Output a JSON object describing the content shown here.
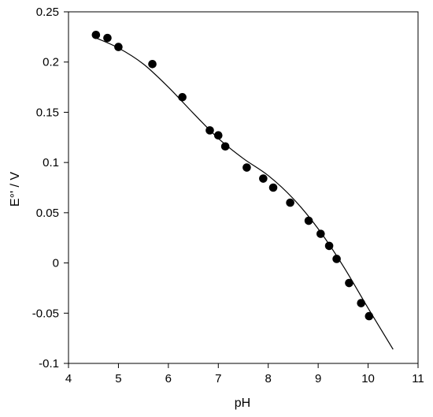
{
  "chart_data": {
    "type": "scatter",
    "title": "",
    "xlabel": "pH",
    "ylabel": "E°' / V",
    "xlim": [
      4,
      11
    ],
    "ylim": [
      -0.1,
      0.25
    ],
    "x_ticks": [
      "4",
      "5",
      "6",
      "7",
      "8",
      "9",
      "10",
      "11"
    ],
    "y_ticks": [
      "0.25",
      "0.2",
      "0.15",
      "0.1",
      "0.05",
      "0",
      "-0.05",
      "-0.1"
    ],
    "grid": false,
    "legend": "none",
    "series": [
      {
        "kind": "points",
        "x": [
          4.55,
          4.78,
          5.0,
          5.68,
          6.28,
          6.83,
          7.0,
          7.14,
          7.57,
          7.9,
          8.1,
          8.44,
          8.81,
          9.05,
          9.22,
          9.37,
          9.62,
          9.86,
          10.02
        ],
        "y": [
          0.227,
          0.224,
          0.215,
          0.198,
          0.165,
          0.132,
          0.127,
          0.116,
          0.095,
          0.084,
          0.075,
          0.06,
          0.042,
          0.029,
          0.017,
          0.004,
          -0.02,
          -0.04,
          -0.053
        ]
      },
      {
        "kind": "fit-line",
        "x": [
          4.5,
          5.0,
          5.5,
          6.0,
          6.5,
          7.0,
          7.5,
          8.0,
          8.5,
          9.0,
          9.5,
          10.0,
          10.5
        ],
        "y": [
          0.225,
          0.214,
          0.198,
          0.175,
          0.149,
          0.124,
          0.104,
          0.087,
          0.064,
          0.034,
          -0.003,
          -0.045,
          -0.086
        ]
      }
    ],
    "colors": {
      "points": "#000000",
      "line": "#000000",
      "axes": "#000000"
    }
  }
}
